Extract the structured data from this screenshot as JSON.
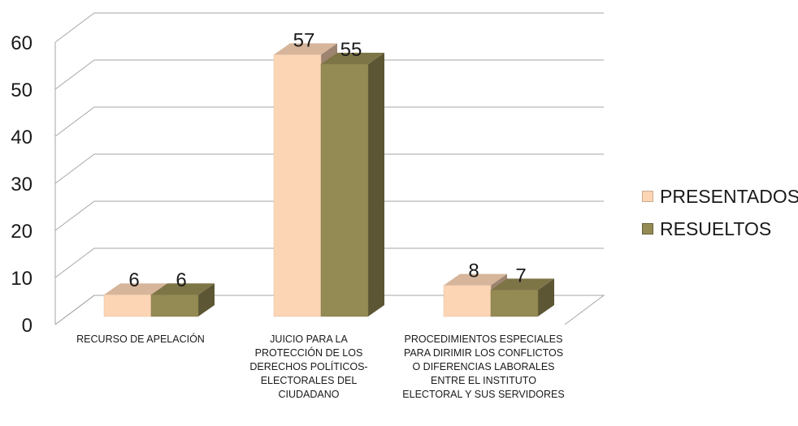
{
  "chart_data": {
    "type": "bar",
    "categories": [
      "RECURSO DE APELACIÓN",
      "JUICIO PARA LA PROTECCIÓN DE LOS DERECHOS POLÍTICOS-ELECTORALES DEL CIUDADANO",
      "PROCEDIMIENTOS ESPECIALES PARA DIRIMIR LOS CONFLICTOS O DIFERENCIAS LABORALES ENTRE EL INSTITUTO ELECTORAL Y SUS SERVIDORES"
    ],
    "series": [
      {
        "name": "PRESENTADOS",
        "values": [
          6,
          57,
          8
        ],
        "color": "#fcd5b5"
      },
      {
        "name": "RESUELTOS",
        "values": [
          6,
          55,
          7
        ],
        "color": "#948a54"
      }
    ],
    "ylim": [
      0,
      60
    ],
    "yticks": [
      "0",
      "10",
      "20",
      "30",
      "40",
      "50",
      "60"
    ],
    "grid": true,
    "three_d": true,
    "legend_position": "right",
    "title": "",
    "xlabel": "",
    "ylabel": ""
  }
}
